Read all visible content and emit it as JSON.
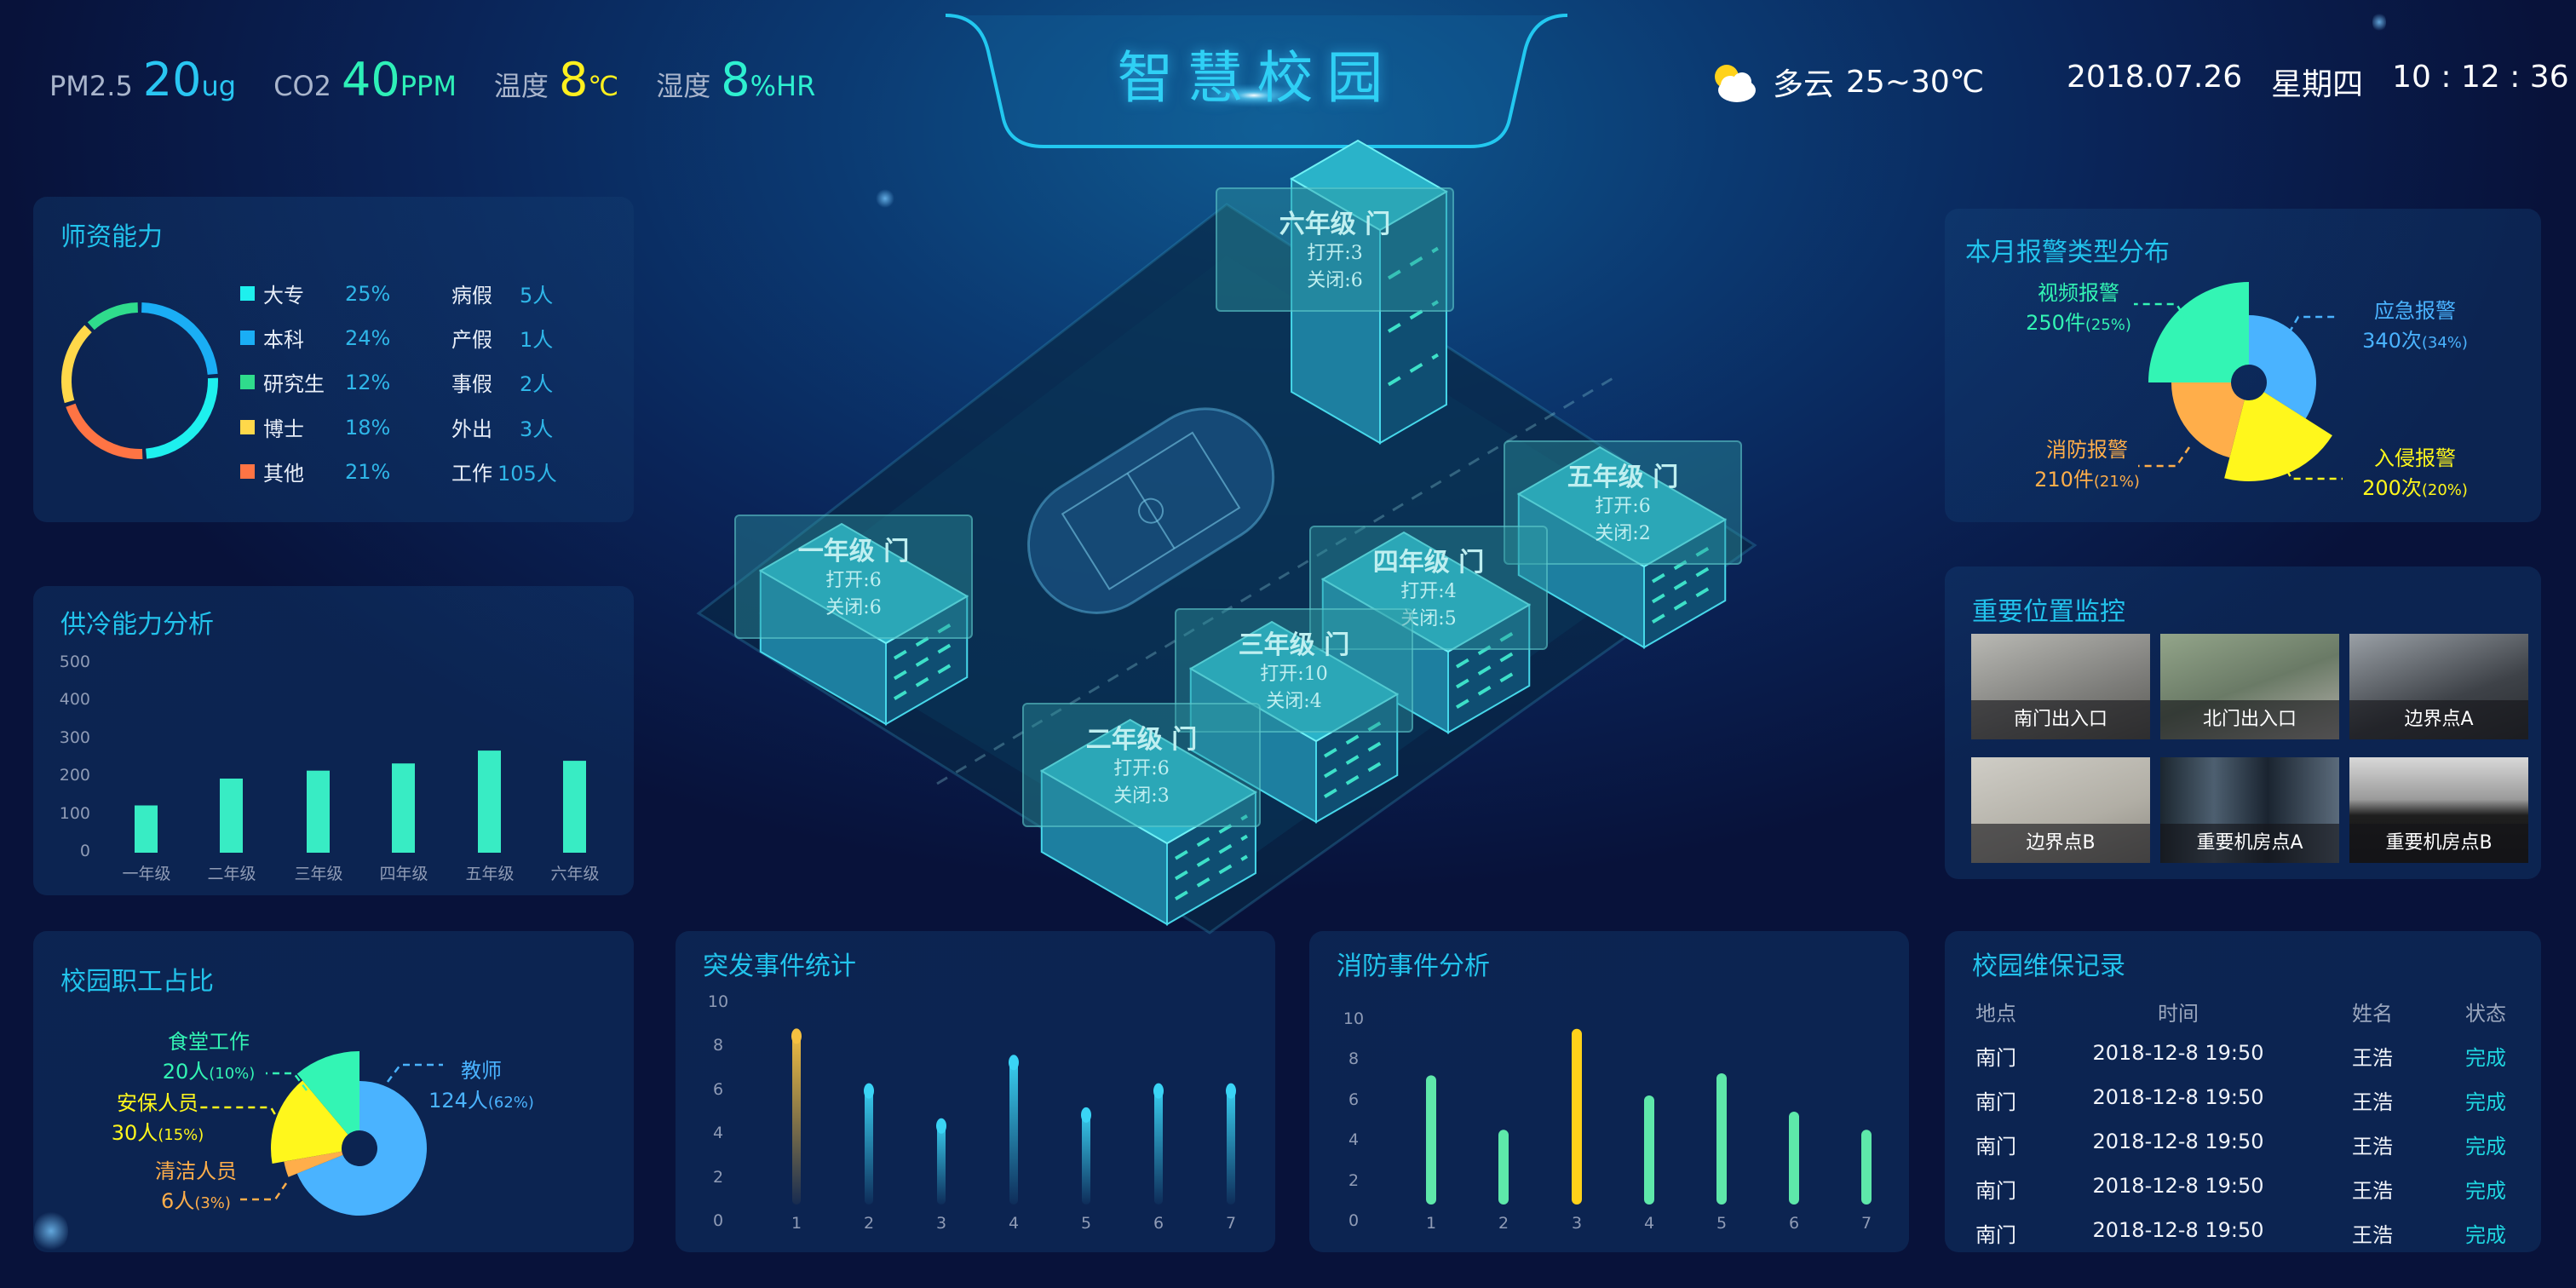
{
  "header": {
    "metrics": [
      {
        "label": "PM2.5",
        "value": "20",
        "unit": "ug",
        "color": "#29c6f2"
      },
      {
        "label": "CO2",
        "value": "40",
        "unit": "PPM",
        "color": "#2ef0b8"
      },
      {
        "label": "温度",
        "value": "8",
        "unit": "℃",
        "color": "#fff01e"
      },
      {
        "label": "湿度",
        "value": "8",
        "unit": "%HR",
        "color": "#2ef0d0"
      }
    ],
    "title": "智慧校园",
    "weather": {
      "icon": "partly-cloudy-icon",
      "text": "多云",
      "temp": "25~30℃"
    },
    "date": "2018.07.26",
    "weekday": "星期四",
    "time": "10 : 12 : 36"
  },
  "teacher_panel": {
    "leave": [
      {
        "label": "病假",
        "value": "5人"
      },
      {
        "label": "产假",
        "value": "1人"
      },
      {
        "label": "事假",
        "value": "2人"
      },
      {
        "label": "外出",
        "value": "3人"
      },
      {
        "label": "工作",
        "value": "105人"
      }
    ]
  },
  "map": {
    "doors": [
      {
        "name": "六年级 门",
        "open": "打开:3",
        "closed": "关闭:6"
      },
      {
        "name": "五年级 门",
        "open": "打开:6",
        "closed": "关闭:2"
      },
      {
        "name": "一年级 门",
        "open": "打开:6",
        "closed": "关闭:6"
      },
      {
        "name": "四年级 门",
        "open": "打开:4",
        "closed": "关闭:5"
      },
      {
        "name": "三年级 门",
        "open": "打开:10",
        "closed": "关闭:4"
      },
      {
        "name": "二年级 门",
        "open": "打开:6",
        "closed": "关闭:3"
      }
    ]
  },
  "monitor": {
    "title": "重要位置监控",
    "cameras": [
      "南门出入口",
      "北门出入口",
      "边界点A",
      "边界点B",
      "重要机房点A",
      "重要机房点B"
    ]
  },
  "maintenance": {
    "title": "校园维保记录",
    "columns": [
      "地点",
      "时间",
      "姓名",
      "状态"
    ],
    "rows": [
      [
        "南门",
        "2018-12-8 19:50",
        "王浩",
        "完成"
      ],
      [
        "南门",
        "2018-12-8 19:50",
        "王浩",
        "完成"
      ],
      [
        "南门",
        "2018-12-8 19:50",
        "王浩",
        "完成"
      ],
      [
        "南门",
        "2018-12-8 19:50",
        "王浩",
        "完成"
      ],
      [
        "南门",
        "2018-12-8 19:50",
        "王浩",
        "完成"
      ]
    ],
    "status_color": "#1fd6e0"
  },
  "chart_data": [
    {
      "type": "bar",
      "title": "供冷能力分析",
      "categories": [
        "一年级",
        "二年级",
        "三年级",
        "四年级",
        "五年级",
        "六年级"
      ],
      "values": [
        125,
        196,
        217,
        236,
        270,
        243
      ],
      "ylim": [
        0,
        500
      ],
      "yticks": [
        0,
        100,
        200,
        300,
        400,
        500
      ],
      "color": "#38ecc4",
      "grid": false
    },
    {
      "type": "bar",
      "title": "突发事件统计",
      "categories": [
        "1",
        "2",
        "3",
        "4",
        "5",
        "6",
        "7"
      ],
      "values": [
        8,
        5.5,
        3.9,
        6.8,
        4.4,
        5.5,
        5.5
      ],
      "ylim": [
        0,
        10
      ],
      "yticks": [
        0,
        2,
        4,
        6,
        8,
        10
      ],
      "color": "#3ad4f5",
      "highlight_color": "#f5c040",
      "highlight_index": 0,
      "grid": false
    },
    {
      "type": "bar",
      "title": "消防事件分析",
      "categories": [
        "1",
        "2",
        "3",
        "4",
        "5",
        "6",
        "7"
      ],
      "values": [
        6.4,
        3.7,
        8.7,
        5.4,
        6.5,
        4.6,
        3.7
      ],
      "ylim": [
        0,
        10
      ],
      "yticks": [
        0,
        2,
        4,
        6,
        8,
        10
      ],
      "color": "#5ee8aa",
      "highlight_color": "#ffd21a",
      "highlight_index": 2,
      "grid": false
    },
    {
      "type": "pie",
      "title": "本月报警类型分布",
      "slices": [
        {
          "name": "应急报警",
          "value": 340,
          "text": "340次",
          "pct": "(34%)",
          "color": "#4ab3ff"
        },
        {
          "name": "入侵报警",
          "value": 200,
          "text": "200次",
          "pct": "(20%)",
          "color": "#fff71c"
        },
        {
          "name": "消防报警",
          "value": 210,
          "text": "210件",
          "pct": "(21%)",
          "color": "#ffae4a"
        },
        {
          "name": "视频报警",
          "value": 250,
          "text": "250件",
          "pct": "(25%)",
          "color": "#33f5b4"
        }
      ]
    },
    {
      "type": "pie",
      "title": "校园职工占比",
      "slices": [
        {
          "name": "教师",
          "value": 124,
          "text": "124人",
          "pct": "(62%)",
          "color": "#4ab3ff"
        },
        {
          "name": "清洁人员",
          "value": 6,
          "text": "6人",
          "pct": "(3%)",
          "color": "#ffae4a"
        },
        {
          "name": "安保人员",
          "value": 30,
          "text": "30人",
          "pct": "(15%)",
          "color": "#fff71c"
        },
        {
          "name": "食堂工作",
          "value": 20,
          "text": "20人",
          "pct": "(10%)",
          "color": "#33f5b4"
        }
      ]
    },
    {
      "type": "pie",
      "title": "师资能力",
      "slices": [
        {
          "name": "大专",
          "value": 25,
          "pct": "25%",
          "color": "#1ef0ee"
        },
        {
          "name": "本科",
          "value": 24,
          "pct": "24%",
          "color": "#1aaef5"
        },
        {
          "name": "研究生",
          "value": 12,
          "pct": "12%",
          "color": "#2fdc8c"
        },
        {
          "name": "博士",
          "value": 18,
          "pct": "18%",
          "color": "#ffd84a"
        },
        {
          "name": "其他",
          "value": 21,
          "pct": "21%",
          "color": "#ff7444"
        }
      ]
    }
  ]
}
